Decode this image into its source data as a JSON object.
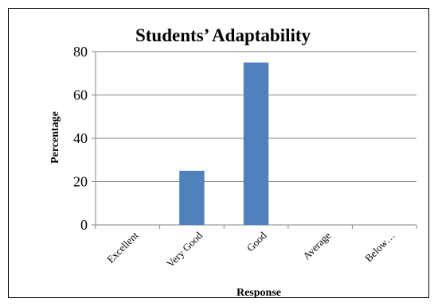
{
  "chart_data": {
    "type": "bar",
    "title": "Students’ Adaptability",
    "xlabel": "Response",
    "ylabel": "Percentage",
    "categories": [
      "Excellent",
      "Very Good",
      "Good",
      "Average",
      "Below…"
    ],
    "values": [
      0,
      25,
      75,
      0,
      0
    ],
    "ylim": [
      0,
      80
    ],
    "yticks": [
      "0",
      "20",
      "40",
      "60",
      "80"
    ],
    "grid": true,
    "legend": "none",
    "colors": {
      "bar": "#4f81bd",
      "grid": "#868686",
      "axis": "#868686"
    }
  }
}
